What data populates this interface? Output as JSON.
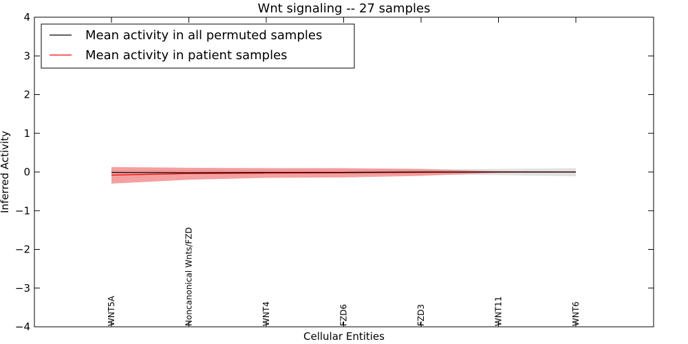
{
  "chart_data": {
    "type": "line",
    "title": "Wnt signaling -- 27 samples",
    "xlabel": "Cellular Entities",
    "ylabel": "Inferred Activity",
    "categories": [
      "WNT5A",
      "Noncanonical Wnts/FZD",
      "WNT4",
      "FZD6",
      "FZD3",
      "WNT11",
      "WNT6"
    ],
    "ylim": [
      -4,
      4
    ],
    "yticks": [
      4,
      3,
      2,
      1,
      0,
      -1,
      -2,
      -3,
      -4
    ],
    "ytick_labels": [
      "4",
      "3",
      "2",
      "1",
      "0",
      "−1",
      "−2",
      "−3",
      "−4"
    ],
    "grid": false,
    "legend_position": "top-left",
    "series": [
      {
        "name": "Mean activity in all permuted samples",
        "color": "#000000",
        "band_color": "#c8c8c8",
        "values": [
          -0.01,
          -0.02,
          -0.01,
          -0.01,
          0.0,
          0.0,
          0.0
        ],
        "lower": [
          -0.05,
          -0.06,
          -0.06,
          -0.06,
          -0.06,
          -0.08,
          -0.11
        ],
        "upper": [
          0.05,
          0.05,
          0.05,
          0.06,
          0.07,
          0.08,
          0.1
        ]
      },
      {
        "name": "Mean activity in patient samples",
        "color": "#ff0000",
        "band_color": "#f08080",
        "values": [
          -0.08,
          -0.04,
          -0.03,
          -0.02,
          -0.01,
          0.0,
          0.0
        ],
        "lower": [
          -0.3,
          -0.2,
          -0.15,
          -0.14,
          -0.1,
          -0.02,
          -0.01
        ],
        "upper": [
          0.13,
          0.11,
          0.1,
          0.1,
          0.08,
          0.02,
          0.01
        ]
      }
    ]
  }
}
